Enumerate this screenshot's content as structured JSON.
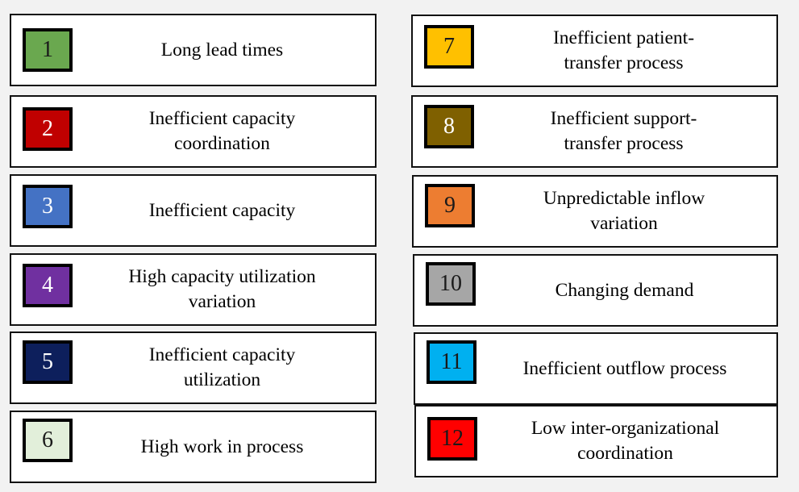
{
  "items": [
    {
      "number": "1",
      "lines": [
        "Long lead times"
      ],
      "color": "#6aa84f",
      "number_color": "#1a1a1a"
    },
    {
      "number": "2",
      "lines": [
        "Inefficient capacity",
        "coordination"
      ],
      "color": "#c00000",
      "number_color": "#ffffff"
    },
    {
      "number": "3",
      "lines": [
        "Inefficient capacity"
      ],
      "color": "#4472c4",
      "number_color": "#ffffff"
    },
    {
      "number": "4",
      "lines": [
        "High capacity utilization",
        "variation"
      ],
      "color": "#7030a0",
      "number_color": "#ffffff"
    },
    {
      "number": "5",
      "lines": [
        "Inefficient capacity",
        "utilization"
      ],
      "color": "#0d1f5c",
      "number_color": "#ffffff"
    },
    {
      "number": "6",
      "lines": [
        "High work in process"
      ],
      "color": "#e2efda",
      "number_color": "#1a1a1a"
    },
    {
      "number": "7",
      "lines": [
        "Inefficient patient-",
        "transfer process"
      ],
      "color": "#ffc000",
      "number_color": "#1a1a1a"
    },
    {
      "number": "8",
      "lines": [
        "Inefficient support-",
        "transfer process"
      ],
      "color": "#7f6000",
      "number_color": "#ffffff"
    },
    {
      "number": "9",
      "lines": [
        "Unpredictable inflow",
        "variation"
      ],
      "color": "#ed7d31",
      "number_color": "#1a1a1a"
    },
    {
      "number": "10",
      "lines": [
        "Changing demand"
      ],
      "color": "#a6a6a6",
      "number_color": "#1a1a1a"
    },
    {
      "number": "11",
      "lines": [
        "Inefficient outflow process"
      ],
      "color": "#00b0f0",
      "number_color": "#1a1a1a"
    },
    {
      "number": "12",
      "lines": [
        "Low inter-organizational",
        "coordination"
      ],
      "color": "#ff0000",
      "number_color": "#1a1a1a"
    }
  ]
}
